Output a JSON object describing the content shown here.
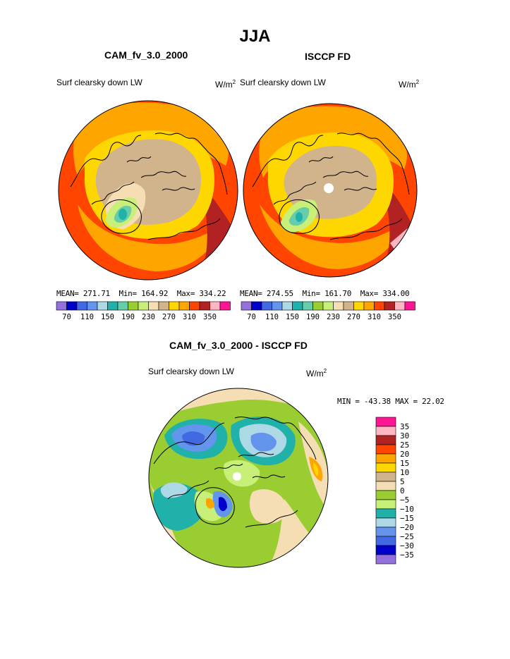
{
  "page_title": "JJA",
  "chart_data": [
    {
      "type": "heatmap",
      "title": "CAM_fv_3.0_2000",
      "variable": "Surf clearsky down LW",
      "units": "W/m",
      "units_sup": "2",
      "stats": {
        "mean": "MEAN= 271.71",
        "min": "Min= 164.92",
        "max": "Max= 334.22"
      },
      "colorbar": {
        "orientation": "horizontal",
        "colors": [
          "#9370db",
          "#0000cd",
          "#4169e1",
          "#6495ed",
          "#add8e6",
          "#20b2aa",
          "#66cdaa",
          "#9acd32",
          "#c8f078",
          "#f5deb3",
          "#d2b48c",
          "#ffd700",
          "#ffa500",
          "#ff4500",
          "#b22222",
          "#ffb6c1",
          "#ff1493"
        ],
        "labels": [
          "70",
          "110",
          "150",
          "190",
          "230",
          "270",
          "310",
          "350"
        ],
        "min": 50,
        "max": 370,
        "step": 20
      }
    },
    {
      "type": "heatmap",
      "title": "ISCCP FD",
      "variable": "Surf clearsky down LW",
      "units": "W/m",
      "units_sup": "2",
      "stats": {
        "mean": "MEAN= 274.55",
        "min": "Min= 161.70",
        "max": "Max= 334.00"
      },
      "colorbar": {
        "orientation": "horizontal",
        "colors": [
          "#9370db",
          "#0000cd",
          "#4169e1",
          "#6495ed",
          "#add8e6",
          "#20b2aa",
          "#66cdaa",
          "#9acd32",
          "#c8f078",
          "#f5deb3",
          "#d2b48c",
          "#ffd700",
          "#ffa500",
          "#ff4500",
          "#b22222",
          "#ffb6c1",
          "#ff1493"
        ],
        "labels": [
          "70",
          "110",
          "150",
          "190",
          "230",
          "270",
          "310",
          "350"
        ],
        "min": 50,
        "max": 370,
        "step": 20
      }
    },
    {
      "type": "heatmap",
      "title": "CAM_fv_3.0_2000 - ISCCP FD",
      "variable": "Surf clearsky down LW",
      "units": "W/m",
      "units_sup": "2",
      "stats": {
        "min_max": "MIN = -43.38 MAX =  22.02"
      },
      "colorbar": {
        "orientation": "vertical",
        "colors": [
          "#ff1493",
          "#ffb6c1",
          "#b22222",
          "#ff4500",
          "#ffa500",
          "#ffd700",
          "#d2b48c",
          "#f5deb3",
          "#9acd32",
          "#c8f078",
          "#20b2aa",
          "#add8e6",
          "#6495ed",
          "#4169e1",
          "#0000cd",
          "#9370db"
        ],
        "labels": [
          "35",
          "30",
          "25",
          "20",
          "15",
          "10",
          "5",
          "0",
          "−5",
          "−10",
          "−15",
          "−20",
          "−25",
          "−30",
          "−35"
        ],
        "min": -40,
        "max": 40
      }
    }
  ],
  "colors": {
    "outline": "#000000",
    "abs_rings": [
      "#ff6a1a",
      "#ffa500",
      "#ffd700",
      "#d2b48c"
    ],
    "diff_base": "#9acd32"
  }
}
